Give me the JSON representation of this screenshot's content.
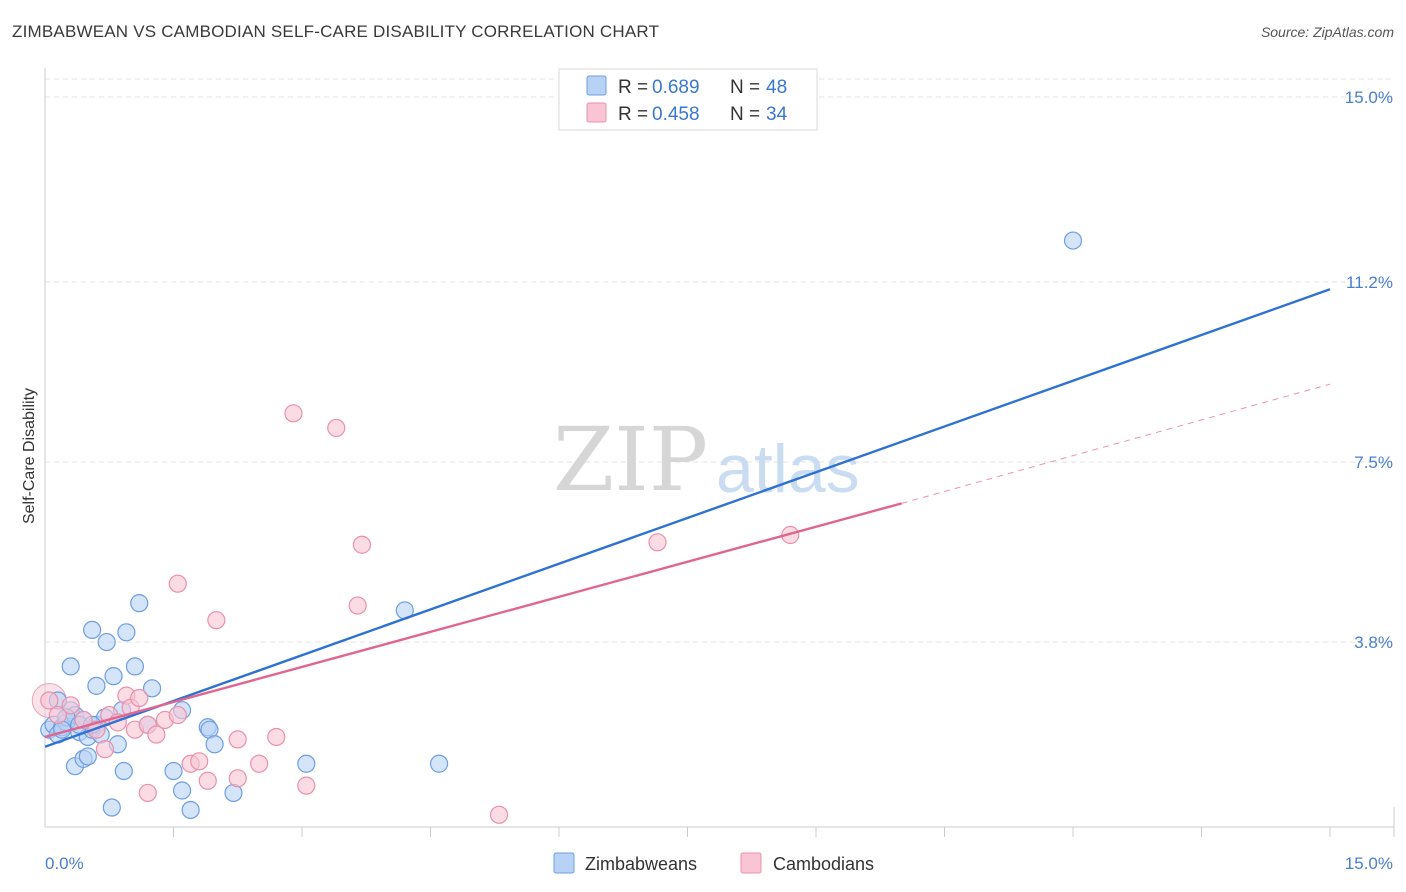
{
  "chart_data": {
    "type": "scatter",
    "title": "ZIMBABWEAN VS CAMBODIAN SELF-CARE DISABILITY CORRELATION CHART",
    "source": "Source: ZipAtlas.com",
    "ylabel": "Self-Care Disability",
    "xlabel": "",
    "xlim": [
      0,
      15
    ],
    "ylim": [
      0,
      15
    ],
    "x_tick_labels": [
      "0.0%",
      "15.0%"
    ],
    "y_ticks": [
      {
        "value": 15.0,
        "label": "15.0%"
      },
      {
        "value": 11.2,
        "label": "11.2%"
      },
      {
        "value": 7.5,
        "label": "7.5%"
      },
      {
        "value": 3.8,
        "label": "3.8%"
      }
    ],
    "watermark": {
      "zip": "ZIP",
      "atlas": "atlas"
    },
    "legend": {
      "r_label": "R = ",
      "n_label": "N = ",
      "entries": [
        {
          "name": "Zimbabweans",
          "r": "0.689",
          "n": "48",
          "fill": "#b8d2f5",
          "stroke": "#6e9ee0"
        },
        {
          "name": "Cambodians",
          "r": "0.458",
          "n": "34",
          "fill": "#f9c5d4",
          "stroke": "#e891ab"
        }
      ]
    },
    "series": [
      {
        "name": "Zimbabweans",
        "color": "#6e9ee0",
        "fill": "#b8d2f5",
        "line_color": "#2f72d2",
        "trend": {
          "x0": 0.0,
          "y0": 1.65,
          "x1": 15.0,
          "y1": 11.05
        },
        "points": [
          [
            0.05,
            2.0
          ],
          [
            0.1,
            2.1
          ],
          [
            0.15,
            1.9
          ],
          [
            0.2,
            2.05
          ],
          [
            0.25,
            2.15
          ],
          [
            0.3,
            2.4
          ],
          [
            0.35,
            2.3
          ],
          [
            0.4,
            1.95
          ],
          [
            0.45,
            2.2
          ],
          [
            0.5,
            1.85
          ],
          [
            0.55,
            2.0
          ],
          [
            0.6,
            2.1
          ],
          [
            0.65,
            1.9
          ],
          [
            0.3,
            3.3
          ],
          [
            0.55,
            4.05
          ],
          [
            0.6,
            2.9
          ],
          [
            0.72,
            3.8
          ],
          [
            0.8,
            3.1
          ],
          [
            0.9,
            2.4
          ],
          [
            0.95,
            4.0
          ],
          [
            1.05,
            3.3
          ],
          [
            1.1,
            4.6
          ],
          [
            1.2,
            2.1
          ],
          [
            1.25,
            2.85
          ],
          [
            0.35,
            1.25
          ],
          [
            0.45,
            1.4
          ],
          [
            0.5,
            1.45
          ],
          [
            0.92,
            1.15
          ],
          [
            0.78,
            0.4
          ],
          [
            0.85,
            1.7
          ],
          [
            1.5,
            1.15
          ],
          [
            1.6,
            0.75
          ],
          [
            1.7,
            0.35
          ],
          [
            1.9,
            2.05
          ],
          [
            1.92,
            2.0
          ],
          [
            1.98,
            1.7
          ],
          [
            2.2,
            0.7
          ],
          [
            3.05,
            1.3
          ],
          [
            4.6,
            1.3
          ],
          [
            4.2,
            4.45
          ],
          [
            0.25,
            2.25
          ],
          [
            0.4,
            2.1
          ],
          [
            0.2,
            2.0
          ],
          [
            0.7,
            2.25
          ],
          [
            1.6,
            2.4
          ],
          [
            12.0,
            12.05
          ],
          [
            0.15,
            2.6
          ],
          [
            0.55,
            2.1
          ]
        ]
      },
      {
        "name": "Cambodians",
        "color": "#e891ab",
        "fill": "#f9c5d4",
        "line_color": "#e06691",
        "trend": {
          "x0": 0.0,
          "y0": 1.85,
          "x1": 10.0,
          "y1": 6.65
        },
        "trend_dashed": {
          "x0": 10.0,
          "y0": 6.65,
          "x1": 15.0,
          "y1": 9.1
        },
        "points": [
          [
            0.05,
            2.6
          ],
          [
            0.15,
            2.3
          ],
          [
            0.3,
            2.5
          ],
          [
            0.45,
            2.2
          ],
          [
            0.6,
            2.0
          ],
          [
            0.7,
            1.6
          ],
          [
            0.75,
            2.3
          ],
          [
            0.85,
            2.15
          ],
          [
            0.95,
            2.7
          ],
          [
            1.0,
            2.45
          ],
          [
            1.05,
            2.0
          ],
          [
            1.1,
            2.65
          ],
          [
            1.2,
            2.1
          ],
          [
            1.3,
            1.9
          ],
          [
            1.4,
            2.2
          ],
          [
            1.55,
            2.3
          ],
          [
            1.7,
            1.3
          ],
          [
            1.8,
            1.35
          ],
          [
            1.9,
            0.95
          ],
          [
            1.55,
            5.0
          ],
          [
            2.0,
            4.25
          ],
          [
            2.25,
            1.8
          ],
          [
            2.25,
            1.0
          ],
          [
            2.7,
            1.85
          ],
          [
            2.5,
            1.3
          ],
          [
            3.05,
            0.85
          ],
          [
            2.9,
            8.5
          ],
          [
            3.4,
            8.2
          ],
          [
            3.7,
            5.8
          ],
          [
            3.65,
            4.55
          ],
          [
            5.3,
            0.25
          ],
          [
            1.2,
            0.7
          ],
          [
            7.15,
            5.85
          ],
          [
            8.7,
            6.0
          ]
        ]
      }
    ]
  }
}
